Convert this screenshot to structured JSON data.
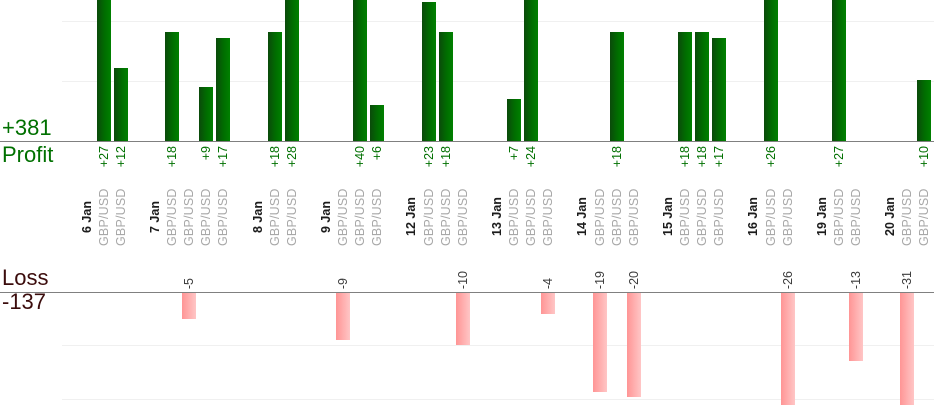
{
  "summary": {
    "profit_total": "+381",
    "profit_label": "Profit",
    "loss_label": "Loss",
    "loss_total": "-137"
  },
  "colors": {
    "profit_text": "#007000",
    "loss_text": "#3b0c0c",
    "profit_bar": "#006e00",
    "loss_bar": "#ffadad",
    "axis_line": "#808080",
    "gridline": "#f0f0f0",
    "date_label": "#1c1c1c",
    "symbol_label": "#a8a8a8",
    "loss_value_label": "#3c3c3c"
  },
  "chart_data": {
    "type": "bar",
    "title": "",
    "description": "Daily trade results per position: profits as green bars above upper axis, losses as pink bars below lower axis; one GBP/USD label per trade, grouped by date",
    "symbol": "GBP/USD",
    "totals": {
      "profit": 381,
      "loss": -137
    },
    "profit_gridlines": [
      10,
      20
    ],
    "loss_gridlines": [
      -10,
      -20
    ],
    "legend_position": "left",
    "groups": [
      {
        "date": "6 Jan",
        "trades": [
          {
            "symbol": "GBP/USD",
            "value": 27,
            "label": "+27"
          },
          {
            "symbol": "GBP/USD",
            "value": 12,
            "label": "+12"
          }
        ]
      },
      {
        "date": "7 Jan",
        "trades": [
          {
            "symbol": "GBP/USD",
            "value": 18,
            "label": "+18"
          },
          {
            "symbol": "GBP/USD",
            "value": -5,
            "label": "-5"
          },
          {
            "symbol": "GBP/USD",
            "value": 9,
            "label": "+9"
          },
          {
            "symbol": "GBP/USD",
            "value": 17,
            "label": "+17"
          }
        ]
      },
      {
        "date": "8 Jan",
        "trades": [
          {
            "symbol": "GBP/USD",
            "value": 18,
            "label": "+18"
          },
          {
            "symbol": "GBP/USD",
            "value": 28,
            "label": "+28"
          }
        ]
      },
      {
        "date": "9 Jan",
        "trades": [
          {
            "symbol": "GBP/USD",
            "value": -9,
            "label": "-9"
          },
          {
            "symbol": "GBP/USD",
            "value": 40,
            "label": "+40"
          },
          {
            "symbol": "GBP/USD",
            "value": 6,
            "label": "+6"
          }
        ]
      },
      {
        "date": "12 Jan",
        "trades": [
          {
            "symbol": "GBP/USD",
            "value": 23,
            "label": "+23"
          },
          {
            "symbol": "GBP/USD",
            "value": 18,
            "label": "+18"
          },
          {
            "symbol": "GBP/USD",
            "value": -10,
            "label": "-10"
          }
        ]
      },
      {
        "date": "13 Jan",
        "trades": [
          {
            "symbol": "GBP/USD",
            "value": 7,
            "label": "+7"
          },
          {
            "symbol": "GBP/USD",
            "value": 24,
            "label": "+24"
          },
          {
            "symbol": "GBP/USD",
            "value": -4,
            "label": "-4"
          }
        ]
      },
      {
        "date": "14 Jan",
        "trades": [
          {
            "symbol": "GBP/USD",
            "value": -19,
            "label": "-19"
          },
          {
            "symbol": "GBP/USD",
            "value": 18,
            "label": "+18"
          },
          {
            "symbol": "GBP/USD",
            "value": -20,
            "label": "-20"
          }
        ]
      },
      {
        "date": "15 Jan",
        "trades": [
          {
            "symbol": "GBP/USD",
            "value": 18,
            "label": "+18"
          },
          {
            "symbol": "GBP/USD",
            "value": 18,
            "label": "+18"
          },
          {
            "symbol": "GBP/USD",
            "value": 17,
            "label": "+17"
          }
        ]
      },
      {
        "date": "16 Jan",
        "trades": [
          {
            "symbol": "GBP/USD",
            "value": 26,
            "label": "+26"
          },
          {
            "symbol": "GBP/USD",
            "value": -26,
            "label": "-26"
          }
        ]
      },
      {
        "date": "19 Jan",
        "trades": [
          {
            "symbol": "GBP/USD",
            "value": 27,
            "label": "+27"
          },
          {
            "symbol": "GBP/USD",
            "value": -13,
            "label": "-13"
          }
        ]
      },
      {
        "date": "20 Jan",
        "trades": [
          {
            "symbol": "GBP/USD",
            "value": -31,
            "label": "-31"
          },
          {
            "symbol": "GBP/USD",
            "value": 10,
            "label": "+10"
          }
        ]
      }
    ]
  }
}
